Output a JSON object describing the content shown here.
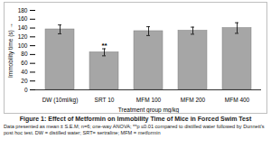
{
  "chart_data": {
    "type": "bar",
    "caption": "Figure 1: Effect of Metformin on Immobility Time of Mice in Forced Swim Test",
    "note": "Data presented as mean ± S.E.M; n=6; one-way ANOVA; **p ≤0.01 compared to distilled water followed by Dunnett's post hoc test. DW = distilled water; SRT= sertraline; MFM = metformin",
    "x_label": "Treatment group mg/kg",
    "y_label": "Immobility time (s)",
    "categories": [
      "DW (10ml/kg)",
      "SRT 10",
      "MFM 100",
      "MFM 200",
      "MFM 400"
    ],
    "values": [
      137,
      85,
      133,
      134,
      140
    ],
    "errors": [
      10,
      8,
      10,
      8,
      12
    ],
    "annotations": [
      {
        "category": "SRT 10",
        "text": "**"
      }
    ],
    "color": "#a6a6a6",
    "ylim": [
      0,
      180
    ],
    "yticks": [
      0,
      20,
      40,
      60,
      80,
      100,
      120,
      140,
      160,
      180
    ],
    "grid": false
  }
}
